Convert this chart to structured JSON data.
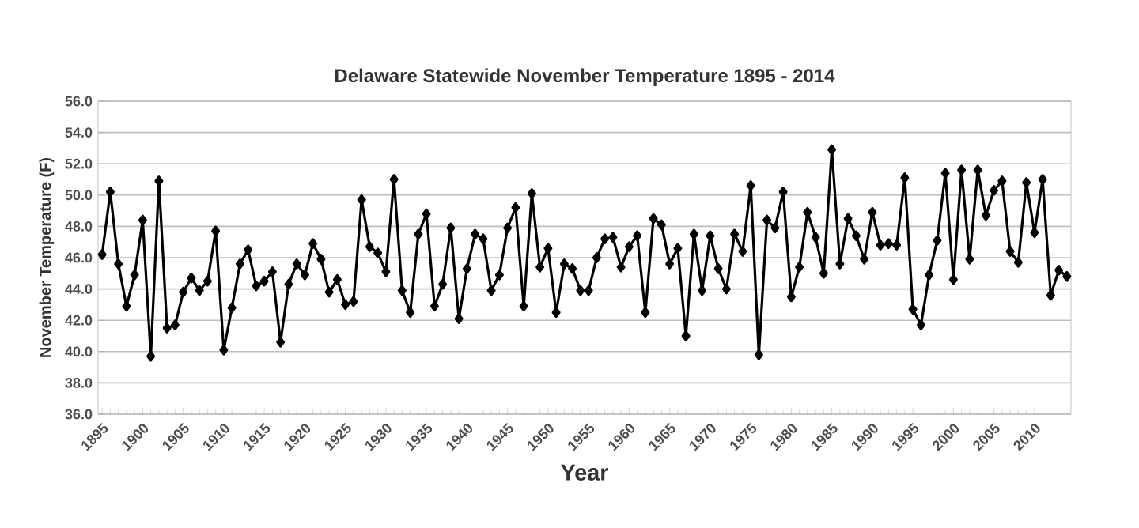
{
  "chart_data": {
    "type": "line",
    "title": "Delaware Statewide November Temperature 1895 - 2014",
    "xlabel": "Year",
    "ylabel": "November Temperature (F)",
    "x": [
      1895,
      1896,
      1897,
      1898,
      1899,
      1900,
      1901,
      1902,
      1903,
      1904,
      1905,
      1906,
      1907,
      1908,
      1909,
      1910,
      1911,
      1912,
      1913,
      1914,
      1915,
      1916,
      1917,
      1918,
      1919,
      1920,
      1921,
      1922,
      1923,
      1924,
      1925,
      1926,
      1927,
      1928,
      1929,
      1930,
      1931,
      1932,
      1933,
      1934,
      1935,
      1936,
      1937,
      1938,
      1939,
      1940,
      1941,
      1942,
      1943,
      1944,
      1945,
      1946,
      1947,
      1948,
      1949,
      1950,
      1951,
      1952,
      1953,
      1954,
      1955,
      1956,
      1957,
      1958,
      1959,
      1960,
      1961,
      1962,
      1963,
      1964,
      1965,
      1966,
      1967,
      1968,
      1969,
      1970,
      1971,
      1972,
      1973,
      1974,
      1975,
      1976,
      1977,
      1978,
      1979,
      1980,
      1981,
      1982,
      1983,
      1984,
      1985,
      1986,
      1987,
      1988,
      1989,
      1990,
      1991,
      1992,
      1993,
      1994,
      1995,
      1996,
      1997,
      1998,
      1999,
      2000,
      2001,
      2002,
      2003,
      2004,
      2005,
      2006,
      2007,
      2008,
      2009,
      2010,
      2011,
      2012,
      2013,
      2014
    ],
    "values": [
      46.2,
      50.2,
      45.6,
      42.9,
      44.9,
      48.4,
      39.7,
      50.9,
      41.5,
      41.7,
      43.8,
      44.7,
      43.9,
      44.5,
      47.7,
      40.1,
      42.8,
      45.6,
      46.5,
      44.2,
      44.5,
      45.1,
      40.6,
      44.3,
      45.6,
      44.9,
      46.9,
      45.9,
      43.8,
      44.6,
      43.0,
      43.2,
      49.7,
      46.7,
      46.3,
      45.1,
      51.0,
      43.9,
      42.5,
      47.5,
      48.8,
      42.9,
      44.3,
      47.9,
      42.1,
      45.3,
      47.5,
      47.2,
      43.9,
      44.9,
      47.9,
      49.2,
      42.9,
      50.1,
      45.4,
      46.6,
      42.5,
      45.6,
      45.3,
      43.9,
      43.9,
      46.0,
      47.2,
      47.3,
      45.4,
      46.7,
      47.4,
      42.5,
      48.5,
      48.1,
      45.6,
      46.6,
      41.0,
      47.5,
      43.9,
      47.4,
      45.3,
      44.0,
      47.5,
      46.4,
      50.6,
      39.8,
      48.4,
      47.9,
      50.2,
      43.5,
      45.4,
      48.9,
      47.3,
      45.0,
      52.9,
      45.6,
      48.5,
      47.4,
      45.9,
      48.9,
      46.8,
      46.9,
      46.8,
      51.1,
      42.7,
      41.7,
      44.9,
      47.1,
      51.4,
      44.6,
      51.6,
      45.9,
      51.6,
      48.7,
      50.3,
      50.9,
      46.4,
      45.7,
      50.8,
      47.6,
      51.0,
      43.6,
      45.2,
      44.8
    ],
    "color": "#000000",
    "marker": "diamond",
    "line_style": "solid",
    "grid": "y",
    "xlim": [
      1894.5,
      2014.5
    ],
    "xticks": [
      1895,
      1900,
      1905,
      1910,
      1915,
      1920,
      1925,
      1930,
      1935,
      1940,
      1945,
      1950,
      1955,
      1960,
      1965,
      1970,
      1975,
      1980,
      1985,
      1990,
      1995,
      2000,
      2005,
      2010
    ],
    "ylim": [
      36,
      56
    ],
    "yticks": [
      {
        "value": 36,
        "label": "36.0"
      },
      {
        "value": 38,
        "label": "38.0"
      },
      {
        "value": 40,
        "label": "40.0"
      },
      {
        "value": 42,
        "label": "42.0"
      },
      {
        "value": 44,
        "label": "44.0"
      },
      {
        "value": 46,
        "label": "46.0"
      },
      {
        "value": 48,
        "label": "48.0"
      },
      {
        "value": 50,
        "label": "50.0"
      },
      {
        "value": 52,
        "label": "52.0"
      },
      {
        "value": 54,
        "label": "54.0"
      },
      {
        "value": 56,
        "label": "56.0"
      }
    ]
  }
}
